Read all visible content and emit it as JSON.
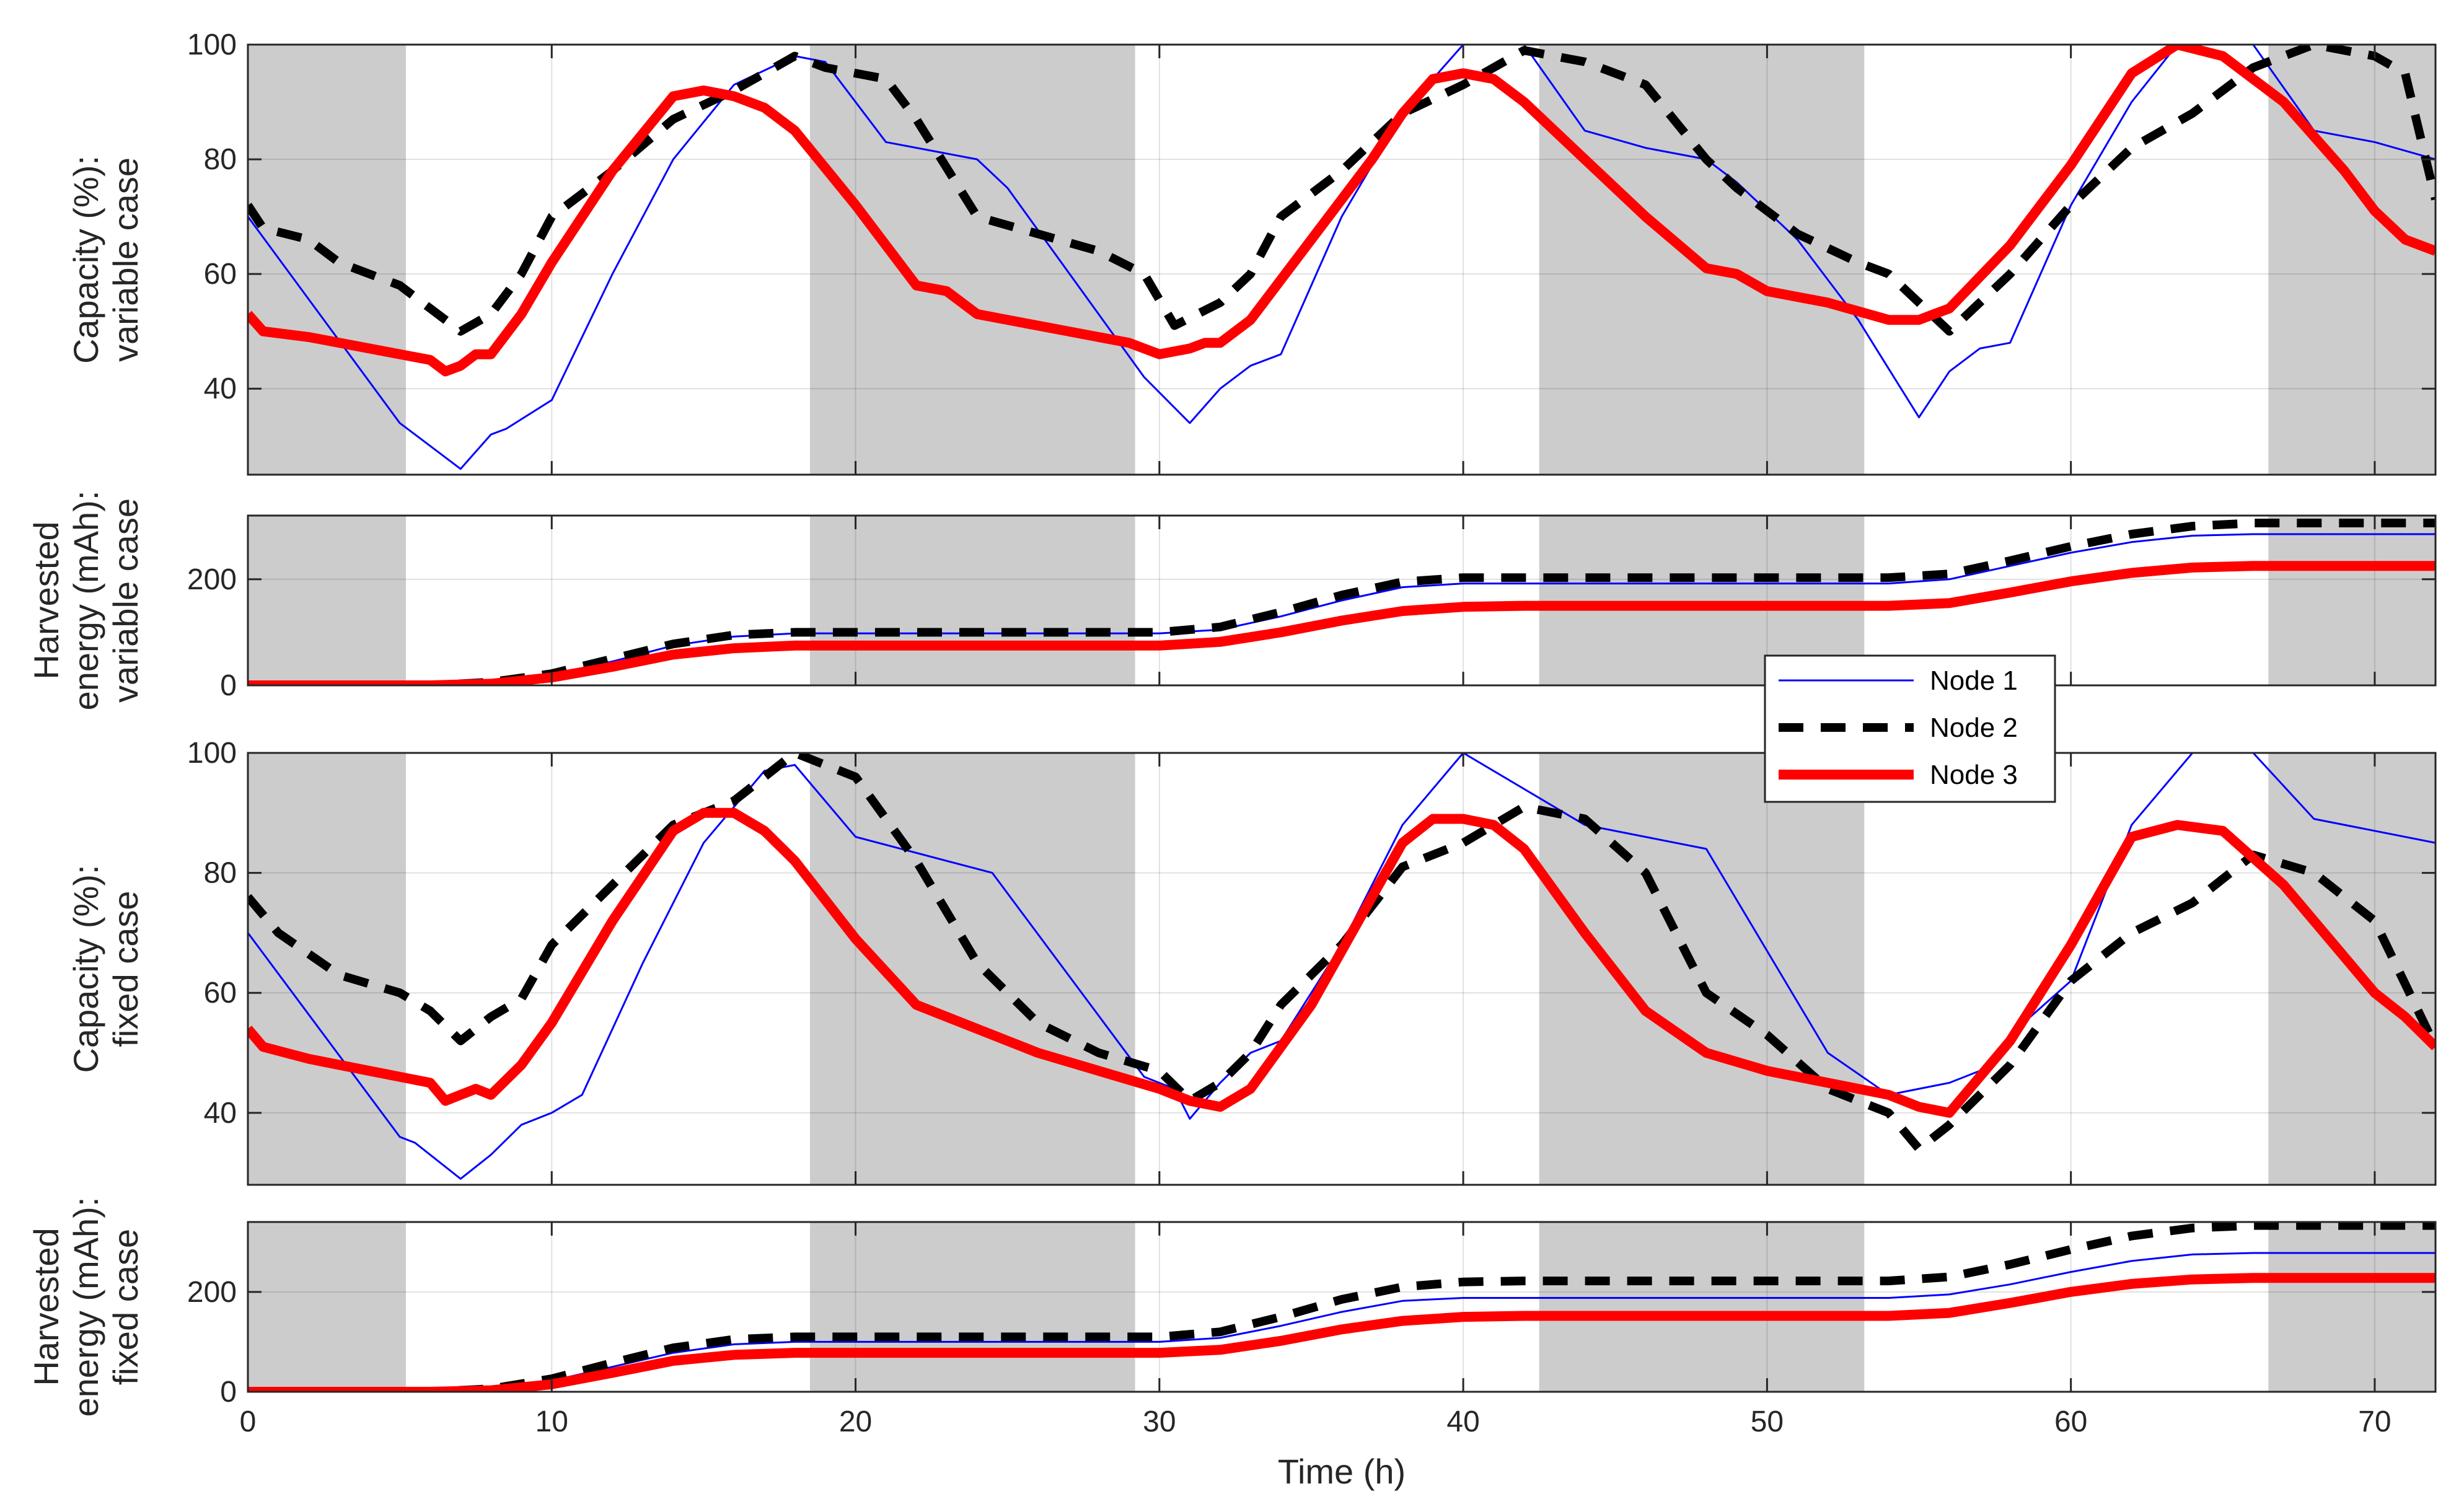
{
  "chart_data": [
    {
      "type": "line",
      "ylabel_lines": [
        "Capacity (%):",
        "variable case"
      ],
      "xlim": [
        0,
        72
      ],
      "ylim": [
        25,
        100
      ],
      "yticks": [
        40,
        60,
        80,
        100
      ],
      "xticks": [
        0,
        10,
        20,
        30,
        40,
        50,
        60,
        70
      ],
      "grid": true,
      "shaded_x_intervals": [
        [
          0,
          5.2
        ],
        [
          18.5,
          29.2
        ],
        [
          42.5,
          53.2
        ],
        [
          66.5,
          72
        ]
      ],
      "series": [
        {
          "name": "Node 1",
          "x": [
            0,
            5,
            5.5,
            7,
            8,
            8.5,
            10,
            12,
            14,
            16,
            18,
            19,
            21,
            23,
            24,
            25,
            29.5,
            31,
            32,
            33,
            34,
            36,
            38,
            40,
            42,
            44,
            46,
            48,
            49,
            51,
            53,
            55,
            56,
            57,
            58,
            60,
            62,
            63.5,
            66,
            68,
            70,
            72
          ],
          "y": [
            70,
            34,
            32,
            26,
            32,
            33,
            38,
            60,
            80,
            93,
            98,
            97,
            83,
            81,
            80,
            75,
            42,
            34,
            40,
            44,
            46,
            70,
            88,
            100,
            100,
            85,
            82,
            80,
            76,
            66,
            52,
            35,
            43,
            47,
            48,
            72,
            90,
            100,
            100,
            85,
            83,
            80
          ]
        },
        {
          "name": "Node 2",
          "x": [
            0,
            0.5,
            2,
            3,
            5,
            6,
            7,
            8,
            9,
            10,
            12,
            14,
            16,
            18,
            19,
            21,
            22,
            24,
            26,
            28,
            29.5,
            30.5,
            32,
            33,
            34,
            36,
            38,
            40,
            42,
            44,
            46,
            48,
            49,
            51,
            53,
            54,
            56,
            57,
            58,
            60,
            62,
            64,
            66,
            68,
            70,
            71,
            72
          ],
          "y": [
            72,
            68,
            66,
            62,
            58,
            54,
            50,
            53,
            60,
            70,
            78,
            87,
            92,
            98,
            96,
            94,
            87,
            70,
            67,
            64,
            60,
            51,
            55,
            60,
            70,
            78,
            88,
            93,
            99,
            97,
            93,
            80,
            75,
            67,
            62,
            60,
            50,
            55,
            60,
            72,
            82,
            88,
            96,
            100,
            98,
            95,
            73
          ]
        },
        {
          "name": "Node 3",
          "x": [
            0,
            0.5,
            2,
            4,
            6,
            6.5,
            7,
            7.5,
            8,
            9,
            10,
            12,
            14,
            15,
            16,
            17,
            18,
            20,
            22,
            23,
            24,
            25,
            27,
            29,
            30,
            31,
            31.5,
            32,
            33,
            35,
            37,
            38,
            39,
            40,
            41,
            42,
            44,
            46,
            48,
            49,
            50,
            52,
            54,
            55,
            55.5,
            56,
            58,
            60,
            62,
            63.5,
            65,
            67,
            69,
            70,
            71,
            72
          ],
          "y": [
            53,
            50,
            49,
            47,
            45,
            43,
            44,
            46,
            46,
            53,
            62,
            78,
            91,
            92,
            91,
            89,
            85,
            72,
            58,
            57,
            53,
            52,
            50,
            48,
            46,
            47,
            48,
            48,
            52,
            66,
            80,
            88,
            94,
            95,
            94,
            90,
            80,
            70,
            61,
            60,
            57,
            55,
            52,
            52,
            53,
            54,
            65,
            79,
            95,
            100,
            98,
            90,
            78,
            71,
            66,
            64
          ]
        }
      ]
    },
    {
      "type": "line",
      "ylabel_lines": [
        "Harvested",
        "energy (mAh):",
        "variable case"
      ],
      "xlim": [
        0,
        72
      ],
      "ylim": [
        0,
        320
      ],
      "yticks": [
        0,
        200
      ],
      "xticks": [
        0,
        10,
        20,
        30,
        40,
        50,
        60,
        70
      ],
      "grid": true,
      "shaded_x_intervals": [
        [
          0,
          5.2
        ],
        [
          18.5,
          29.2
        ],
        [
          42.5,
          53.2
        ],
        [
          66.5,
          72
        ]
      ],
      "series": [
        {
          "name": "Node 1",
          "x": [
            0,
            6,
            8,
            10,
            12,
            14,
            16,
            18,
            30,
            32,
            34,
            36,
            38,
            40,
            42,
            54,
            56,
            58,
            60,
            62,
            64,
            66,
            72
          ],
          "y": [
            0,
            0,
            5,
            20,
            45,
            75,
            92,
            98,
            98,
            105,
            130,
            160,
            185,
            192,
            192,
            192,
            200,
            225,
            250,
            270,
            282,
            285,
            285
          ]
        },
        {
          "name": "Node 2",
          "x": [
            0,
            6,
            8,
            10,
            12,
            14,
            16,
            18,
            30,
            32,
            34,
            36,
            38,
            40,
            42,
            54,
            56,
            58,
            60,
            62,
            64,
            66,
            72
          ],
          "y": [
            0,
            0,
            6,
            22,
            50,
            78,
            95,
            100,
            100,
            110,
            138,
            170,
            195,
            203,
            203,
            203,
            210,
            235,
            262,
            285,
            300,
            306,
            306
          ]
        },
        {
          "name": "Node 3",
          "x": [
            0,
            6,
            8,
            10,
            12,
            14,
            16,
            18,
            30,
            32,
            34,
            36,
            38,
            40,
            42,
            54,
            56,
            58,
            60,
            62,
            64,
            66,
            72
          ],
          "y": [
            0,
            0,
            3,
            15,
            35,
            58,
            70,
            75,
            75,
            82,
            100,
            122,
            140,
            148,
            150,
            150,
            155,
            175,
            196,
            212,
            222,
            225,
            225
          ]
        }
      ]
    },
    {
      "type": "line",
      "ylabel_lines": [
        "Capacity (%):",
        "fixed case"
      ],
      "xlim": [
        0,
        72
      ],
      "ylim": [
        28,
        100
      ],
      "yticks": [
        40,
        60,
        80,
        100
      ],
      "xticks": [
        0,
        10,
        20,
        30,
        40,
        50,
        60,
        70
      ],
      "grid": true,
      "shaded_x_intervals": [
        [
          0,
          5.2
        ],
        [
          18.5,
          29.2
        ],
        [
          42.5,
          53.2
        ],
        [
          66.5,
          72
        ]
      ],
      "series": [
        {
          "name": "Node 1",
          "x": [
            0,
            5,
            5.5,
            7,
            8,
            9,
            10,
            11,
            13,
            15,
            17,
            18,
            20,
            24.5,
            29.5,
            30.5,
            31,
            32,
            33,
            34,
            36,
            38,
            40,
            44,
            48,
            52,
            54,
            56,
            57,
            58,
            60,
            62,
            64,
            66,
            68,
            70,
            72
          ],
          "y": [
            70,
            36,
            35,
            29,
            33,
            38,
            40,
            43,
            65,
            85,
            97,
            98,
            86,
            80,
            46,
            44,
            39,
            45,
            50,
            52,
            68,
            88,
            100,
            88,
            84,
            50,
            43,
            45,
            47,
            53,
            62,
            88,
            100,
            100,
            89,
            87,
            85
          ]
        },
        {
          "name": "Node 2",
          "x": [
            0,
            1,
            3,
            5,
            6,
            7,
            8,
            9,
            10,
            12,
            14,
            16,
            18,
            20,
            22,
            24,
            26,
            28,
            30,
            31,
            32,
            33,
            34,
            36,
            38,
            40,
            42,
            44,
            46,
            48,
            50,
            52,
            54,
            55,
            56,
            58,
            60,
            62,
            64,
            66,
            68,
            70,
            72
          ],
          "y": [
            76,
            70,
            63,
            60,
            57,
            52,
            56,
            59,
            68,
            78,
            88,
            92,
            100,
            96,
            82,
            65,
            55,
            50,
            47,
            42,
            45,
            50,
            58,
            68,
            81,
            85,
            91,
            89,
            80,
            60,
            53,
            44,
            40,
            34,
            38,
            48,
            62,
            70,
            75,
            83,
            80,
            72,
            51
          ]
        },
        {
          "name": "Node 3",
          "x": [
            0,
            0.5,
            2,
            4,
            6,
            6.5,
            7,
            7.5,
            8,
            9,
            10,
            12,
            14,
            15,
            16,
            17,
            18,
            20,
            22,
            24,
            26,
            28,
            30,
            31,
            32,
            33,
            35,
            37,
            38,
            39,
            40,
            41,
            42,
            44,
            46,
            48,
            50,
            52,
            54,
            55,
            56,
            58,
            60,
            62,
            63.5,
            65,
            67,
            69,
            70,
            71,
            72
          ],
          "y": [
            54,
            51,
            49,
            47,
            45,
            42,
            43,
            44,
            43,
            48,
            55,
            72,
            87,
            90,
            90,
            87,
            82,
            69,
            58,
            54,
            50,
            47,
            44,
            42,
            41,
            44,
            58,
            76,
            85,
            89,
            89,
            88,
            84,
            70,
            57,
            50,
            47,
            45,
            43,
            41,
            40,
            52,
            68,
            86,
            88,
            87,
            78,
            66,
            60,
            56,
            51
          ]
        }
      ]
    },
    {
      "type": "line",
      "ylabel_lines": [
        "Harvested",
        "energy (mAh):",
        "fixed case"
      ],
      "xlim": [
        0,
        72
      ],
      "ylim": [
        0,
        340
      ],
      "yticks": [
        0,
        200
      ],
      "xticks": [
        0,
        10,
        20,
        30,
        40,
        50,
        60,
        70
      ],
      "xticklabels_shown": true,
      "xlabel": "Time (h)",
      "grid": true,
      "shaded_x_intervals": [
        [
          0,
          5.2
        ],
        [
          18.5,
          29.2
        ],
        [
          42.5,
          53.2
        ],
        [
          66.5,
          72
        ]
      ],
      "series": [
        {
          "name": "Node 1",
          "x": [
            0,
            6,
            8,
            10,
            12,
            14,
            16,
            18,
            30,
            32,
            34,
            36,
            38,
            40,
            42,
            54,
            56,
            58,
            60,
            62,
            64,
            66,
            72
          ],
          "y": [
            0,
            0,
            5,
            22,
            50,
            78,
            95,
            100,
            100,
            108,
            132,
            160,
            182,
            188,
            188,
            188,
            195,
            215,
            240,
            262,
            275,
            278,
            278
          ]
        },
        {
          "name": "Node 2",
          "x": [
            0,
            6,
            8,
            10,
            12,
            14,
            16,
            18,
            30,
            32,
            34,
            36,
            38,
            40,
            42,
            54,
            56,
            58,
            60,
            62,
            64,
            66,
            72
          ],
          "y": [
            0,
            0,
            6,
            26,
            58,
            88,
            105,
            110,
            110,
            120,
            150,
            185,
            210,
            220,
            222,
            222,
            230,
            255,
            285,
            312,
            328,
            333,
            333
          ]
        },
        {
          "name": "Node 3",
          "x": [
            0,
            6,
            8,
            10,
            12,
            14,
            16,
            18,
            30,
            32,
            34,
            36,
            38,
            40,
            42,
            54,
            56,
            58,
            60,
            62,
            64,
            66,
            72
          ],
          "y": [
            0,
            0,
            3,
            15,
            38,
            62,
            74,
            78,
            78,
            84,
            102,
            125,
            142,
            150,
            152,
            152,
            158,
            178,
            200,
            216,
            225,
            228,
            228
          ]
        }
      ]
    }
  ],
  "legend": {
    "placement": "center",
    "entries": [
      {
        "label": "Node 1",
        "color": "#0000ff",
        "style": "solid-thin"
      },
      {
        "label": "Node 2",
        "color": "#000000",
        "style": "dashed-thick"
      },
      {
        "label": "Node 3",
        "color": "#ff0000",
        "style": "solid-thick"
      }
    ]
  },
  "colors": {
    "node1": "#0000ff",
    "node2": "#000000",
    "node3": "#ff0000",
    "shade": "#cccccc",
    "grid": "#dcdcdc",
    "axis": "#262626"
  }
}
